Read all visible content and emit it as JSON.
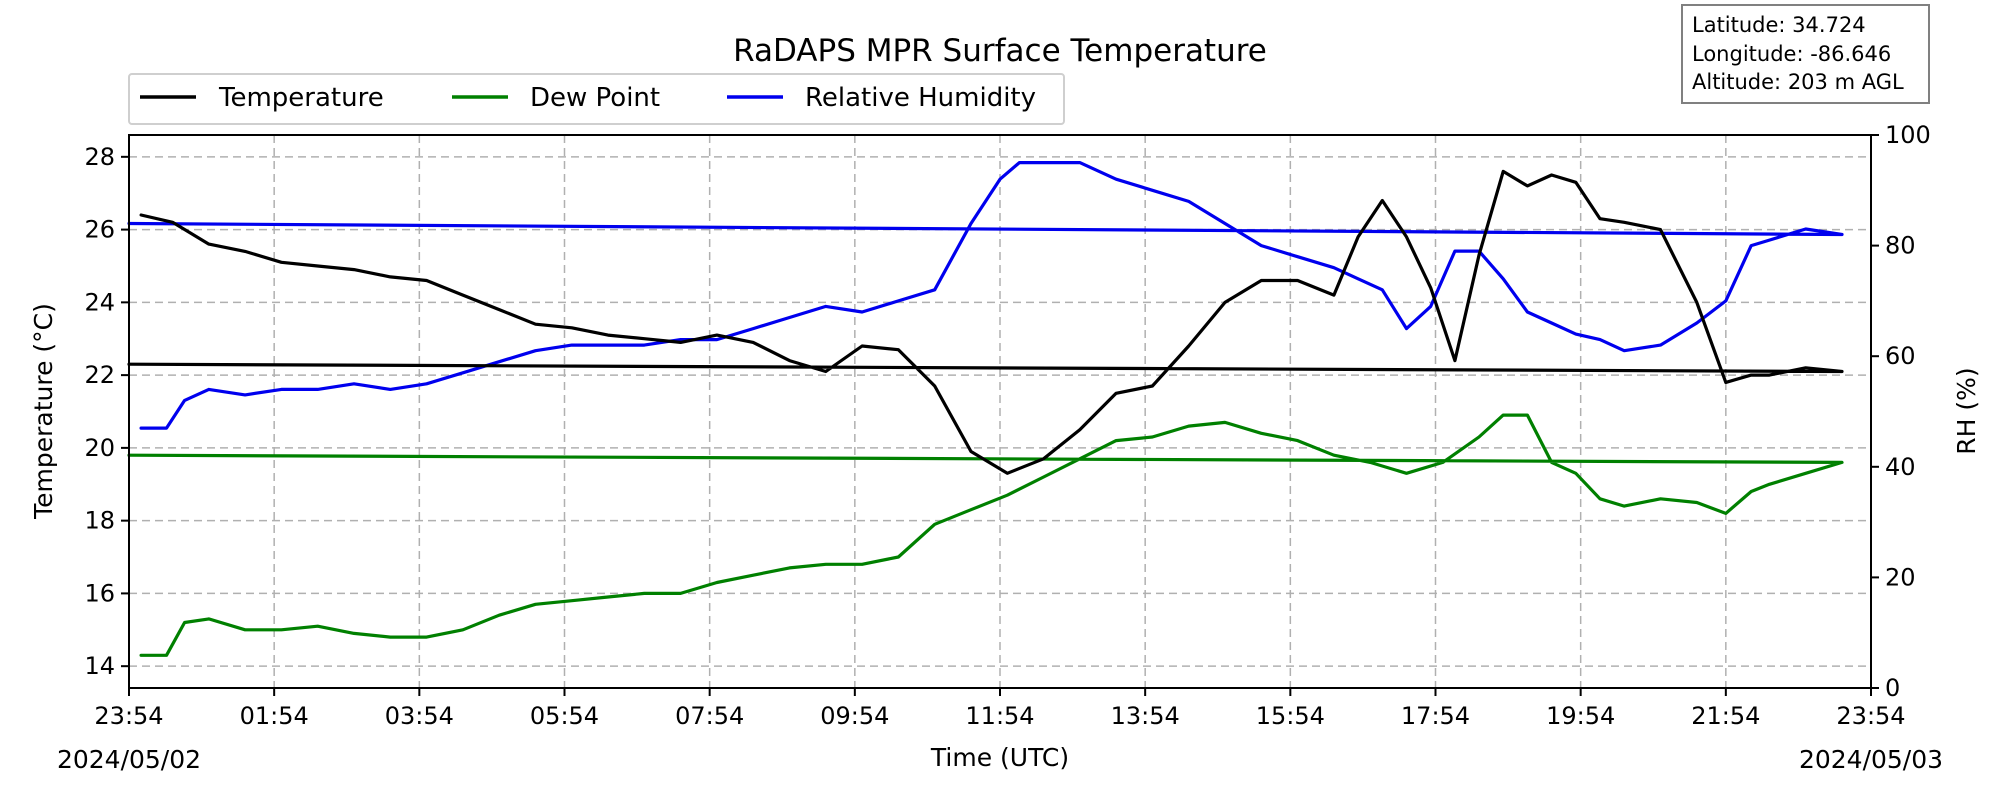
{
  "chart_data": {
    "type": "line",
    "title": "RaDAPS MPR Surface Temperature",
    "xlabel": "Time (UTC)",
    "ylabel_left": "Temperature (°C)",
    "ylabel_right": "RH (%)",
    "start_date": "2024/05/02",
    "end_date": "2024/05/03",
    "x_ticks": [
      "23:54",
      "01:54",
      "03:54",
      "05:54",
      "07:54",
      "09:54",
      "11:54",
      "13:54",
      "15:54",
      "17:54",
      "19:54",
      "21:54",
      "23:54"
    ],
    "x_range": [
      "23:54",
      "23:54"
    ],
    "y_left_ticks": [
      14,
      16,
      18,
      20,
      22,
      24,
      26,
      28
    ],
    "y_left_range": [
      13.4,
      28.6
    ],
    "y_right_ticks": [
      0,
      20,
      40,
      60,
      80,
      100
    ],
    "y_right_range": [
      0,
      100
    ],
    "grid": true,
    "legend_position": "top-left",
    "info_box": {
      "latitude": "Latitude: 34.724",
      "longitude": "Longitude: -86.646",
      "altitude": "Altitude: 203 m AGL"
    },
    "series": [
      {
        "name": "Temperature",
        "axis": "left",
        "color": "#000000",
        "x": [
          "00:04",
          "00:30",
          "01:00",
          "01:30",
          "02:00",
          "02:30",
          "03:00",
          "03:30",
          "04:00",
          "04:30",
          "05:00",
          "05:30",
          "06:00",
          "06:30",
          "07:00",
          "07:30",
          "08:00",
          "08:30",
          "09:00",
          "09:30",
          "10:00",
          "10:30",
          "11:00",
          "11:30",
          "12:00",
          "12:30",
          "13:00",
          "13:30",
          "14:00",
          "14:30",
          "15:00",
          "15:30",
          "16:00",
          "16:30",
          "16:50",
          "17:10",
          "17:30",
          "17:50",
          "18:10",
          "18:30",
          "18:50",
          "19:10",
          "19:30",
          "19:50",
          "20:10",
          "20:30",
          "21:00",
          "21:30",
          "21:54",
          "22:15",
          "22:30",
          "23:00",
          "23:30",
          "23:54"
        ],
        "values": [
          26.4,
          26.2,
          25.6,
          25.4,
          25.1,
          25.0,
          24.9,
          24.7,
          24.6,
          24.2,
          23.8,
          23.4,
          23.3,
          23.1,
          23.0,
          22.9,
          23.1,
          22.9,
          22.4,
          22.1,
          22.8,
          22.7,
          21.7,
          19.9,
          19.3,
          19.7,
          20.5,
          21.5,
          21.7,
          22.8,
          24.0,
          24.6,
          24.6,
          24.2,
          25.8,
          26.8,
          25.8,
          24.4,
          22.4,
          25.3,
          27.6,
          27.2,
          27.5,
          27.3,
          26.3,
          26.2,
          26.0,
          24.0,
          21.8,
          22.0,
          22.0,
          22.2,
          22.1,
          22.3
        ]
      },
      {
        "name": "Dew Point",
        "axis": "left",
        "color": "#008000",
        "x": [
          "00:04",
          "00:25",
          "00:40",
          "01:00",
          "01:30",
          "02:00",
          "02:30",
          "03:00",
          "03:30",
          "04:00",
          "04:30",
          "05:00",
          "05:30",
          "06:00",
          "06:30",
          "07:00",
          "07:30",
          "08:00",
          "08:30",
          "09:00",
          "09:30",
          "10:00",
          "10:30",
          "11:00",
          "11:30",
          "12:00",
          "12:30",
          "13:00",
          "13:30",
          "14:00",
          "14:30",
          "15:00",
          "15:30",
          "16:00",
          "16:30",
          "17:00",
          "17:30",
          "18:00",
          "18:30",
          "18:50",
          "19:10",
          "19:30",
          "19:50",
          "20:10",
          "20:30",
          "21:00",
          "21:30",
          "21:54",
          "22:15",
          "22:30",
          "23:00",
          "23:30",
          "23:54"
        ],
        "values": [
          14.3,
          14.3,
          15.2,
          15.3,
          15.0,
          15.0,
          15.1,
          14.9,
          14.8,
          14.8,
          15.0,
          15.4,
          15.7,
          15.8,
          15.9,
          16.0,
          16.0,
          16.3,
          16.5,
          16.7,
          16.8,
          16.8,
          17.0,
          17.9,
          18.3,
          18.7,
          19.2,
          19.7,
          20.2,
          20.3,
          20.6,
          20.7,
          20.4,
          20.2,
          19.8,
          19.6,
          19.3,
          19.6,
          20.3,
          20.9,
          20.9,
          19.6,
          19.3,
          18.6,
          18.4,
          18.6,
          18.5,
          18.2,
          18.8,
          19.0,
          19.3,
          19.6,
          19.8
        ]
      },
      {
        "name": "Relative Humidity",
        "axis": "right",
        "color": "#0000ee",
        "x": [
          "00:04",
          "00:25",
          "00:40",
          "01:00",
          "01:30",
          "02:00",
          "02:30",
          "03:00",
          "03:30",
          "04:00",
          "04:30",
          "05:00",
          "05:30",
          "06:00",
          "06:30",
          "07:00",
          "07:30",
          "08:00",
          "08:30",
          "09:00",
          "09:30",
          "10:00",
          "10:30",
          "11:00",
          "11:30",
          "11:54",
          "12:10",
          "12:30",
          "13:00",
          "13:30",
          "14:00",
          "14:30",
          "15:00",
          "15:30",
          "16:00",
          "16:30",
          "16:50",
          "17:10",
          "17:30",
          "17:50",
          "18:10",
          "18:30",
          "18:50",
          "19:10",
          "19:30",
          "19:50",
          "20:10",
          "20:30",
          "21:00",
          "21:30",
          "21:54",
          "22:15",
          "22:30",
          "23:00",
          "23:30",
          "23:54"
        ],
        "values": [
          47,
          47,
          52,
          54,
          53,
          54,
          54,
          55,
          54,
          55,
          57,
          59,
          61,
          62,
          62,
          62,
          63,
          63,
          65,
          67,
          69,
          68,
          70,
          72,
          84,
          92,
          95,
          95,
          95,
          92,
          90,
          88,
          84,
          80,
          78,
          76,
          74,
          72,
          65,
          69,
          79,
          79,
          74,
          68,
          66,
          64,
          63,
          61,
          62,
          66,
          70,
          80,
          81,
          83,
          82,
          84
        ]
      }
    ]
  }
}
